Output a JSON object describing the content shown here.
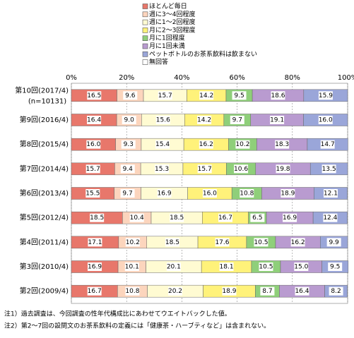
{
  "chart_data": {
    "type": "stacked-barh",
    "categories": [
      "第10回(2017/4)",
      "第9回(2016/4)",
      "第8回(2015/4)",
      "第7回(2014/4)",
      "第6回(2013/4)",
      "第5回(2012/4)",
      "第4回(2011/4)",
      "第3回(2010/4)",
      "第2回(2009/4)"
    ],
    "category_note": "(n=10131)",
    "xlim": [
      0,
      100
    ],
    "xticks": [
      {
        "value": 0,
        "label": "0%"
      },
      {
        "value": 20,
        "label": "20%"
      },
      {
        "value": 40,
        "label": "40%"
      },
      {
        "value": 60,
        "label": "60%"
      },
      {
        "value": 80,
        "label": "80%"
      },
      {
        "value": 100,
        "label": "100%"
      }
    ],
    "grid": true,
    "series": [
      {
        "name": "ほとんど毎日",
        "color": "#e8776b",
        "values": [
          16.5,
          16.4,
          16.0,
          15.7,
          15.5,
          18.5,
          17.1,
          16.9,
          16.7
        ],
        "value_labels": [
          "16.5",
          "16.4",
          "16.0",
          "15.7",
          "15.5",
          "18.5",
          "17.1",
          "16.9",
          "16.7"
        ]
      },
      {
        "name": "週に3～4回程度",
        "color": "#fcd5bd",
        "values": [
          9.6,
          9.0,
          9.3,
          9.4,
          9.7,
          10.4,
          10.2,
          10.1,
          10.8
        ],
        "value_labels": [
          "9.6",
          "9.0",
          "9.3",
          "9.4",
          "9.7",
          "10.4",
          "10.2",
          "10.1",
          "10.8"
        ]
      },
      {
        "name": "週に1～2回程度",
        "color": "#fffbd2",
        "values": [
          15.7,
          15.6,
          15.4,
          15.3,
          16.9,
          18.5,
          18.5,
          20.1,
          20.2
        ],
        "value_labels": [
          "15.7",
          "15.6",
          "15.4",
          "15.3",
          "16.9",
          "18.5",
          "18.5",
          "20.1",
          "20.2"
        ]
      },
      {
        "name": "月に2～3回程度",
        "color": "#fff27a",
        "values": [
          14.2,
          14.2,
          16.2,
          15.7,
          16.0,
          16.7,
          17.6,
          18.1,
          18.9
        ],
        "value_labels": [
          "14.2",
          "14.2",
          "16.2",
          "15.7",
          "16.0",
          "16.7",
          "17.6",
          "18.1",
          "18.9"
        ]
      },
      {
        "name": "月に1回程度",
        "color": "#8fcf7a",
        "values": [
          9.5,
          9.7,
          10.2,
          10.6,
          10.8,
          6.5,
          10.5,
          10.5,
          8.7
        ],
        "value_labels": [
          "9.5",
          "9.7",
          "10.2",
          "10.6",
          "10.8",
          "6.5",
          "10.5",
          "10.5",
          "8.7"
        ]
      },
      {
        "name": "月に1回未満",
        "color": "#b99bd0",
        "values": [
          18.6,
          19.1,
          18.3,
          19.8,
          18.9,
          16.9,
          16.2,
          15.0,
          16.4
        ],
        "value_labels": [
          "18.6",
          "19.1",
          "18.3",
          "19.8",
          "18.9",
          "16.9",
          "16.2",
          "15.0",
          "16.4"
        ]
      },
      {
        "name": "ペットボトルのお茶系飲料は飲まない",
        "color": "#9aa6d9",
        "values": [
          15.9,
          16.0,
          14.7,
          13.5,
          12.1,
          12.4,
          9.9,
          9.5,
          8.2
        ],
        "value_labels": [
          "15.9",
          "16.0",
          "14.7",
          "13.5",
          "12.1",
          "12.4",
          "9.9",
          "9.5",
          "8.2"
        ]
      },
      {
        "name": "無回答",
        "color": "#ffffff",
        "values": [
          0,
          0,
          0,
          0,
          0,
          0,
          0,
          0,
          0
        ]
      }
    ],
    "notes": [
      "注1）過去調査は、今回調査の性年代構成比にあわせてウエイトバックした値。",
      "注2）第2～7回の設問文のお茶系飲料の定義には「健康茶・ハーブティなど」は含まれない。"
    ]
  }
}
